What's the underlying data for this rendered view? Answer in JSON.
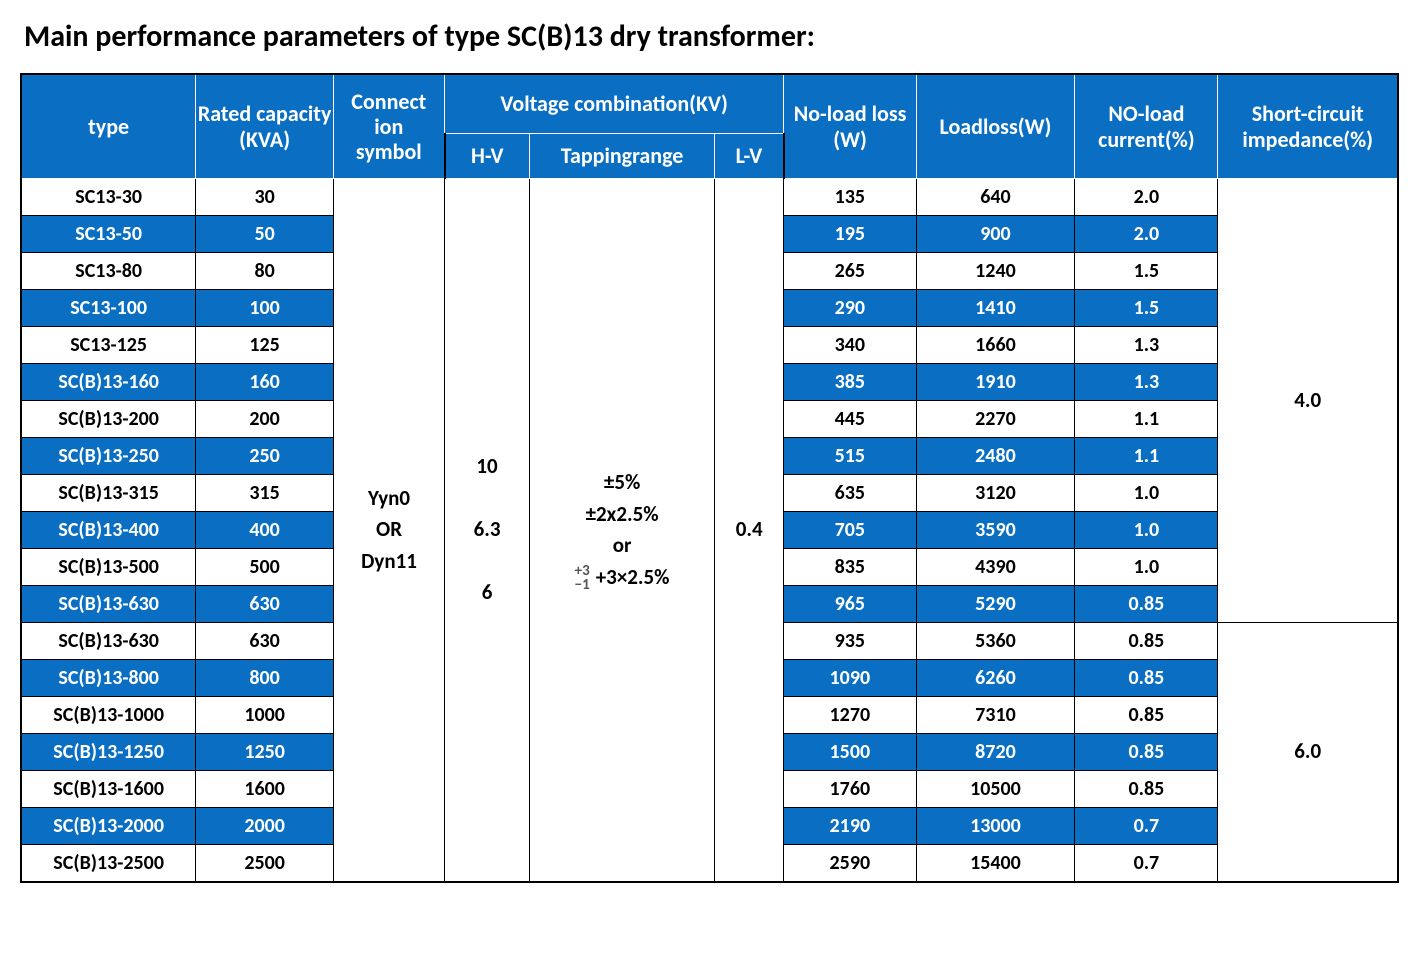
{
  "colors": {
    "header_bg": "#0a6fc2",
    "highlight_bg": "#0a6fc2",
    "page_bg": "#ffffff",
    "text": "#000000",
    "header_text": "#ffffff"
  },
  "title": "Main performance parameters of type SC(B)13 dry transformer:",
  "columns": {
    "type": "type",
    "rated_capacity": "Rated capacity (KVA)",
    "connection_symbol": "Connect\nion\nsymbol",
    "voltage_combination": "Voltage combination(KV)",
    "hv": "H-V",
    "tapping_range": "Tappingrange",
    "lv": "L-V",
    "no_load_loss": "No-load loss (W)",
    "load_loss": "Loadloss(W)",
    "no_load_current": "NO-load current(%)",
    "short_circuit_impedance": "Short-circuit impedance(%)"
  },
  "merged": {
    "connection_symbol": "Yyn0\nOR\nDyn11",
    "hv": "10\n\n6.3\n\n6",
    "tapping_range_lines": [
      "±5%",
      "±2x2.5%",
      "or",
      "+3×2.5%"
    ],
    "tapping_range_prefix": {
      "top": "+3",
      "bottom": "−1"
    },
    "lv": "0.4",
    "impedance_top": "4.0",
    "impedance_bottom": "6.0"
  },
  "rows": [
    {
      "type": "SC13-30",
      "capacity": "30",
      "no_load_loss": "135",
      "load_loss": "640",
      "no_load_current": "2.0",
      "highlight": false
    },
    {
      "type": "SC13-50",
      "capacity": "50",
      "no_load_loss": "195",
      "load_loss": "900",
      "no_load_current": "2.0",
      "highlight": true
    },
    {
      "type": "SC13-80",
      "capacity": "80",
      "no_load_loss": "265",
      "load_loss": "1240",
      "no_load_current": "1.5",
      "highlight": false
    },
    {
      "type": "SC13-100",
      "capacity": "100",
      "no_load_loss": "290",
      "load_loss": "1410",
      "no_load_current": "1.5",
      "highlight": true
    },
    {
      "type": "SC13-125",
      "capacity": "125",
      "no_load_loss": "340",
      "load_loss": "1660",
      "no_load_current": "1.3",
      "highlight": false
    },
    {
      "type": "SC(B)13-160",
      "capacity": "160",
      "no_load_loss": "385",
      "load_loss": "1910",
      "no_load_current": "1.3",
      "highlight": true
    },
    {
      "type": "SC(B)13-200",
      "capacity": "200",
      "no_load_loss": "445",
      "load_loss": "2270",
      "no_load_current": "1.1",
      "highlight": false
    },
    {
      "type": "SC(B)13-250",
      "capacity": "250",
      "no_load_loss": "515",
      "load_loss": "2480",
      "no_load_current": "1.1",
      "highlight": true
    },
    {
      "type": "SC(B)13-315",
      "capacity": "315",
      "no_load_loss": "635",
      "load_loss": "3120",
      "no_load_current": "1.0",
      "highlight": false
    },
    {
      "type": "SC(B)13-400",
      "capacity": "400",
      "no_load_loss": "705",
      "load_loss": "3590",
      "no_load_current": "1.0",
      "highlight": true
    },
    {
      "type": "SC(B)13-500",
      "capacity": "500",
      "no_load_loss": "835",
      "load_loss": "4390",
      "no_load_current": "1.0",
      "highlight": false
    },
    {
      "type": "SC(B)13-630",
      "capacity": "630",
      "no_load_loss": "965",
      "load_loss": "5290",
      "no_load_current": "0.85",
      "highlight": true
    },
    {
      "type": "SC(B)13-630",
      "capacity": "630",
      "no_load_loss": "935",
      "load_loss": "5360",
      "no_load_current": "0.85",
      "highlight": false
    },
    {
      "type": "SC(B)13-800",
      "capacity": "800",
      "no_load_loss": "1090",
      "load_loss": "6260",
      "no_load_current": "0.85",
      "highlight": true
    },
    {
      "type": "SC(B)13-1000",
      "capacity": "1000",
      "no_load_loss": "1270",
      "load_loss": "7310",
      "no_load_current": "0.85",
      "highlight": false
    },
    {
      "type": "SC(B)13-1250",
      "capacity": "1250",
      "no_load_loss": "1500",
      "load_loss": "8720",
      "no_load_current": "0.85",
      "highlight": true
    },
    {
      "type": "SC(B)13-1600",
      "capacity": "1600",
      "no_load_loss": "1760",
      "load_loss": "10500",
      "no_load_current": "0.85",
      "highlight": false
    },
    {
      "type": "SC(B)13-2000",
      "capacity": "2000",
      "no_load_loss": "2190",
      "load_loss": "13000",
      "no_load_current": "0.7",
      "highlight": true
    },
    {
      "type": "SC(B)13-2500",
      "capacity": "2500",
      "no_load_loss": "2590",
      "load_loss": "15400",
      "no_load_current": "0.7",
      "highlight": false
    }
  ],
  "impedance_split_index": 12
}
